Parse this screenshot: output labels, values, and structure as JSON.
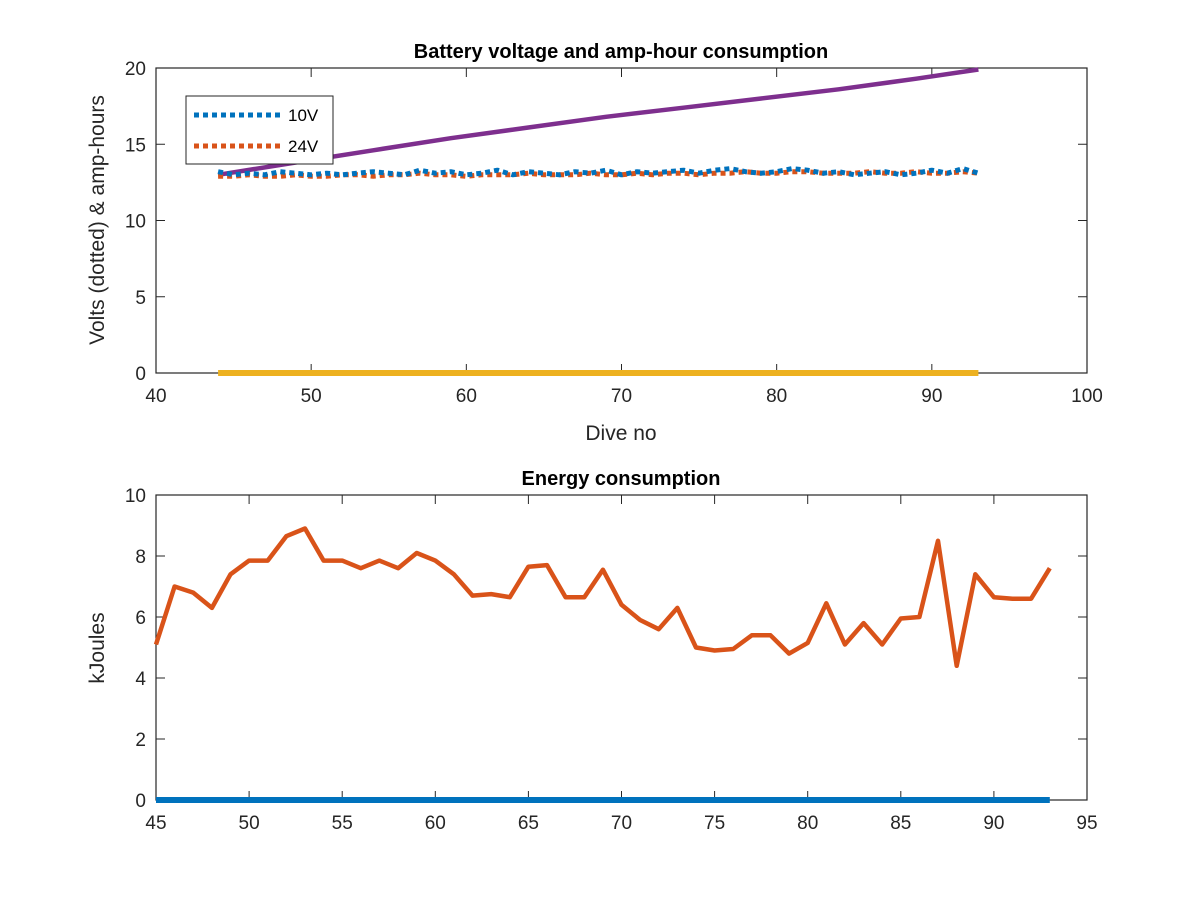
{
  "chart_data": [
    {
      "type": "line",
      "title": "Battery voltage and amp-hour consumption",
      "xlabel": "Dive no",
      "ylabel": "Volts (dotted) & amp-hours",
      "xlim": [
        40,
        100
      ],
      "ylim": [
        0,
        20
      ],
      "xticks": [
        40,
        50,
        60,
        70,
        80,
        90,
        100
      ],
      "yticks": [
        0,
        5,
        10,
        15,
        20
      ],
      "legend": {
        "placement": "top-left",
        "entries": [
          "10V",
          "24V"
        ]
      },
      "colors": {
        "10V": "#0072BD",
        "24V": "#D95319",
        "amp_hours": "#7E2F8E",
        "zero": "#EDB120"
      },
      "series": [
        {
          "name": "10V",
          "style": "dotted",
          "x": [
            44,
            45,
            46,
            47,
            48,
            49,
            50,
            51,
            52,
            53,
            54,
            55,
            56,
            57,
            58,
            59,
            60,
            61,
            62,
            63,
            64,
            65,
            66,
            67,
            68,
            69,
            70,
            71,
            72,
            73,
            74,
            75,
            76,
            77,
            78,
            79,
            80,
            81,
            82,
            83,
            84,
            85,
            86,
            87,
            88,
            89,
            90,
            91,
            92,
            93
          ],
          "y": [
            13.2,
            13.0,
            13.1,
            13.0,
            13.2,
            13.1,
            13.0,
            13.1,
            13.0,
            13.1,
            13.2,
            13.1,
            13.0,
            13.3,
            13.1,
            13.2,
            13.0,
            13.1,
            13.3,
            13.0,
            13.2,
            13.1,
            13.0,
            13.2,
            13.1,
            13.3,
            13.0,
            13.2,
            13.1,
            13.2,
            13.3,
            13.1,
            13.3,
            13.4,
            13.2,
            13.1,
            13.2,
            13.4,
            13.3,
            13.1,
            13.2,
            13.0,
            13.1,
            13.2,
            13.0,
            13.1,
            13.3,
            13.1,
            13.4,
            13.1
          ]
        },
        {
          "name": "24V",
          "style": "dotted",
          "x": [
            44,
            45,
            46,
            47,
            48,
            49,
            50,
            51,
            52,
            53,
            54,
            55,
            56,
            57,
            58,
            59,
            60,
            61,
            62,
            63,
            64,
            65,
            66,
            67,
            68,
            69,
            70,
            71,
            72,
            73,
            74,
            75,
            76,
            77,
            78,
            79,
            80,
            81,
            82,
            83,
            84,
            85,
            86,
            87,
            88,
            89,
            90,
            91,
            92,
            93
          ],
          "y": [
            12.9,
            12.9,
            13.0,
            12.9,
            12.9,
            13.0,
            12.9,
            12.9,
            13.0,
            13.0,
            12.9,
            13.0,
            13.0,
            13.1,
            13.0,
            13.0,
            12.9,
            13.0,
            13.0,
            13.0,
            13.1,
            13.0,
            13.0,
            13.0,
            13.1,
            13.0,
            13.0,
            13.1,
            13.0,
            13.1,
            13.1,
            13.0,
            13.1,
            13.1,
            13.2,
            13.1,
            13.1,
            13.2,
            13.2,
            13.1,
            13.1,
            13.1,
            13.2,
            13.1,
            13.1,
            13.2,
            13.1,
            13.1,
            13.2,
            13.1
          ]
        },
        {
          "style": "solid",
          "x": [
            44,
            49,
            54,
            59,
            64,
            69,
            74,
            79,
            84,
            89,
            93
          ],
          "y": [
            13.0,
            13.8,
            14.6,
            15.4,
            16.1,
            16.8,
            17.4,
            18.0,
            18.6,
            19.3,
            19.9
          ]
        },
        {
          "style": "solid",
          "x": [
            44,
            93
          ],
          "y": [
            0,
            0
          ]
        }
      ]
    },
    {
      "type": "line",
      "title": "Energy consumption",
      "xlabel": "",
      "ylabel": "kJoules",
      "xlim": [
        45,
        95
      ],
      "ylim": [
        0,
        10
      ],
      "xticks": [
        45,
        50,
        55,
        60,
        65,
        70,
        75,
        80,
        85,
        90,
        95
      ],
      "yticks": [
        0,
        2,
        4,
        6,
        8,
        10
      ],
      "colors": {
        "zero": "#0072BD",
        "energy": "#D95319"
      },
      "series": [
        {
          "style": "solid",
          "x": [
            45,
            93
          ],
          "y": [
            0,
            0
          ]
        },
        {
          "style": "solid",
          "x": [
            45,
            46,
            47,
            48,
            49,
            50,
            51,
            52,
            53,
            54,
            55,
            56,
            57,
            58,
            59,
            60,
            61,
            62,
            63,
            64,
            65,
            66,
            67,
            68,
            69,
            70,
            71,
            72,
            73,
            74,
            75,
            76,
            77,
            78,
            79,
            80,
            81,
            82,
            83,
            84,
            85,
            86,
            87,
            88,
            89,
            90,
            91,
            92,
            93
          ],
          "y": [
            5.1,
            7.0,
            6.8,
            6.3,
            7.4,
            7.85,
            7.85,
            8.65,
            8.9,
            7.85,
            7.85,
            7.6,
            7.85,
            7.6,
            8.1,
            7.85,
            7.4,
            6.7,
            6.75,
            6.65,
            7.65,
            7.7,
            6.65,
            6.65,
            7.55,
            6.4,
            5.9,
            5.6,
            6.3,
            5.0,
            4.9,
            4.95,
            5.4,
            5.4,
            4.8,
            5.15,
            6.45,
            5.1,
            5.8,
            5.1,
            5.95,
            6.0,
            8.5,
            4.4,
            7.4,
            6.65,
            6.6,
            6.6,
            7.6
          ]
        }
      ]
    }
  ]
}
